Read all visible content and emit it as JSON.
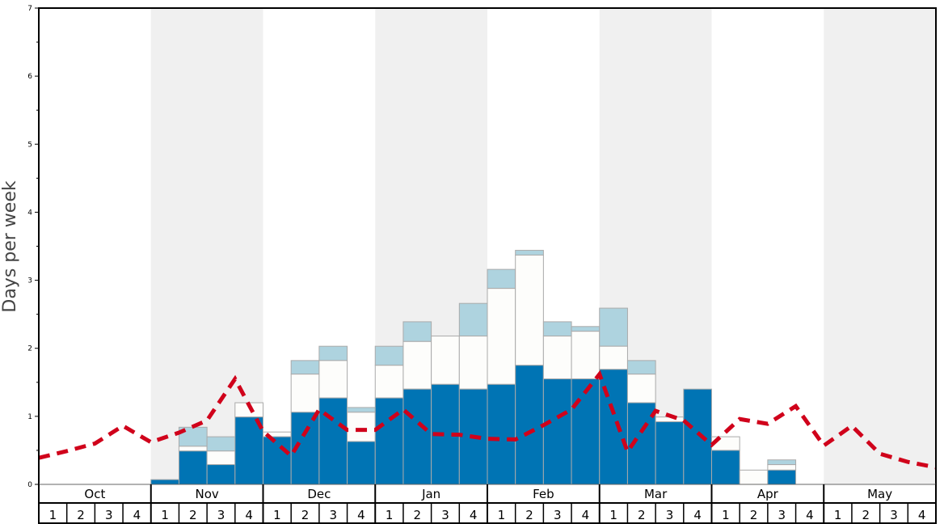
{
  "chart_data": {
    "type": "bar",
    "ylabel": "Days per week",
    "ylim": [
      0,
      7
    ],
    "yticks": [
      "0",
      "1",
      "2",
      "3",
      "4",
      "5",
      "6",
      "7"
    ],
    "months": [
      "Oct",
      "Nov",
      "Dec",
      "Jan",
      "Feb",
      "Mar",
      "Apr",
      "May"
    ],
    "week_labels": [
      "1",
      "2",
      "3",
      "4"
    ],
    "shaded_months": [
      "Nov",
      "Jan",
      "Mar",
      "May"
    ],
    "colors": {
      "dark": "#0074b4",
      "mid": "#fdfdfb",
      "light": "#aed3df",
      "line": "#d0021b",
      "shade": "#f0f0f0"
    },
    "series": [
      {
        "name": "dark",
        "values": [
          0,
          0,
          0,
          0,
          0.07,
          0.49,
          0.29,
          0.99,
          0.7,
          1.06,
          1.27,
          0.63,
          1.27,
          1.4,
          1.47,
          1.4,
          1.47,
          1.75,
          1.55,
          1.55,
          1.69,
          1.2,
          0.92,
          1.4,
          0.5,
          0,
          0.21,
          0,
          0,
          0,
          0,
          0
        ]
      },
      {
        "name": "mid_cumulative",
        "values": [
          0,
          0,
          0,
          0,
          0.07,
          0.56,
          0.49,
          1.2,
          0.77,
          1.62,
          1.82,
          1.06,
          1.75,
          2.1,
          2.18,
          2.18,
          2.88,
          3.37,
          2.18,
          2.25,
          2.03,
          1.62,
          0.99,
          1.4,
          0.7,
          0.21,
          0.29,
          0,
          0,
          0,
          0,
          0
        ]
      },
      {
        "name": "light_cumulative",
        "values": [
          0,
          0,
          0,
          0,
          0.07,
          0.84,
          0.7,
          1.2,
          0.77,
          1.82,
          2.03,
          1.13,
          2.03,
          2.39,
          2.18,
          2.66,
          3.16,
          3.44,
          2.39,
          2.32,
          2.59,
          1.82,
          0.99,
          1.4,
          0.7,
          0.21,
          0.36,
          0,
          0,
          0,
          0,
          0
        ]
      },
      {
        "name": "average_line_at_week_boundaries",
        "values": [
          0.39,
          0.49,
          0.6,
          0.86,
          0.62,
          0.76,
          0.94,
          1.55,
          0.78,
          0.42,
          1.1,
          0.8,
          0.8,
          1.1,
          0.74,
          0.73,
          0.67,
          0.66,
          0.87,
          1.1,
          1.62,
          0.48,
          1.08,
          0.94,
          0.58,
          0.96,
          0.89,
          1.15,
          0.57,
          0.86,
          0.45,
          0.33,
          0.25
        ]
      }
    ]
  }
}
